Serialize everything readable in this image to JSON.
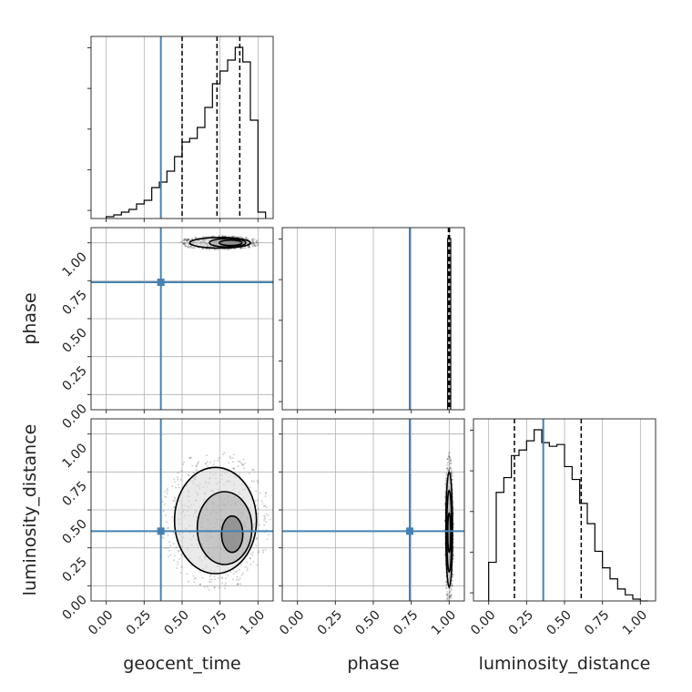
{
  "chart_data": {
    "type": "corner",
    "parameters": [
      "geocent_time",
      "phase",
      "luminosity_distance"
    ],
    "axis_labels": {
      "x": [
        "geocent_time",
        "phase",
        "luminosity_distance"
      ],
      "y": [
        "phase",
        "luminosity_distance"
      ]
    },
    "tick_values": [
      0.0,
      0.25,
      0.5,
      0.75,
      1.0
    ],
    "tick_labels": [
      "0.00",
      "0.25",
      "0.50",
      "0.75",
      "1.00"
    ],
    "axis_ranges": {
      "geocent_time": [
        -0.1,
        1.1
      ],
      "phase": [
        -0.1,
        1.1
      ],
      "luminosity_distance": [
        -0.1,
        1.1
      ]
    },
    "grid": true,
    "truths": {
      "geocent_time": 0.36,
      "phase": 0.74,
      "luminosity_distance": 0.36,
      "color": "#4682b4"
    },
    "quantiles": {
      "geocent_time": [
        0.5,
        0.73,
        0.88
      ],
      "phase": [
        0.995,
        1.0,
        1.002
      ],
      "luminosity_distance": [
        0.17,
        0.36,
        0.61
      ]
    },
    "histograms": {
      "geocent_time": {
        "bin_edges": [
          0.0,
          0.05,
          0.1,
          0.15,
          0.2,
          0.25,
          0.3,
          0.35,
          0.4,
          0.45,
          0.5,
          0.55,
          0.6,
          0.65,
          0.7,
          0.75,
          0.8,
          0.85,
          0.9,
          0.95,
          1.0,
          1.05
        ],
        "counts": [
          0.01,
          0.02,
          0.035,
          0.05,
          0.08,
          0.1,
          0.17,
          0.2,
          0.26,
          0.34,
          0.42,
          0.44,
          0.5,
          0.61,
          0.74,
          0.81,
          0.87,
          0.94,
          0.86,
          0.54,
          0.035
        ]
      },
      "phase": {
        "bin_edges": [
          0.99,
          1.0,
          1.01
        ],
        "counts": [
          1.0,
          1.0
        ]
      },
      "luminosity_distance": {
        "bin_edges": [
          0.0,
          0.05,
          0.1,
          0.15,
          0.2,
          0.25,
          0.3,
          0.35,
          0.4,
          0.45,
          0.5,
          0.55,
          0.6,
          0.65,
          0.7,
          0.75,
          0.8,
          0.85,
          0.9,
          0.95,
          1.0,
          1.05
        ],
        "counts": [
          0.21,
          0.59,
          0.67,
          0.79,
          0.82,
          0.87,
          0.93,
          0.86,
          0.84,
          0.85,
          0.73,
          0.66,
          0.53,
          0.42,
          0.27,
          0.18,
          0.12,
          0.065,
          0.033,
          0.01,
          0.0
        ]
      }
    },
    "density_2d": [
      {
        "x": "geocent_time",
        "y": "phase",
        "peak": [
          0.8,
          1.0
        ],
        "contours": [
          {
            "cx": 0.82,
            "cy": 1.0,
            "rx": 0.075,
            "ry": 0.018
          },
          {
            "cx": 0.8,
            "cy": 1.0,
            "rx": 0.12,
            "ry": 0.028
          },
          {
            "cx": 0.75,
            "cy": 1.0,
            "rx": 0.2,
            "ry": 0.035
          }
        ]
      },
      {
        "x": "geocent_time",
        "y": "luminosity_distance",
        "peak": [
          0.83,
          0.35
        ],
        "contours": [
          {
            "cx": 0.83,
            "cy": 0.34,
            "rx": 0.07,
            "ry": 0.12
          },
          {
            "cx": 0.78,
            "cy": 0.38,
            "rx": 0.18,
            "ry": 0.24
          },
          {
            "cx": 0.72,
            "cy": 0.43,
            "rx": 0.27,
            "ry": 0.35
          }
        ]
      },
      {
        "x": "phase",
        "y": "luminosity_distance",
        "peak": [
          1.0,
          0.35
        ],
        "contours": [
          {
            "cx": 1.0,
            "cy": 0.35,
            "rx": 0.01,
            "ry": 0.13
          },
          {
            "cx": 1.0,
            "cy": 0.36,
            "rx": 0.016,
            "ry": 0.27
          },
          {
            "cx": 1.0,
            "cy": 0.37,
            "rx": 0.022,
            "ry": 0.38
          }
        ]
      }
    ]
  }
}
